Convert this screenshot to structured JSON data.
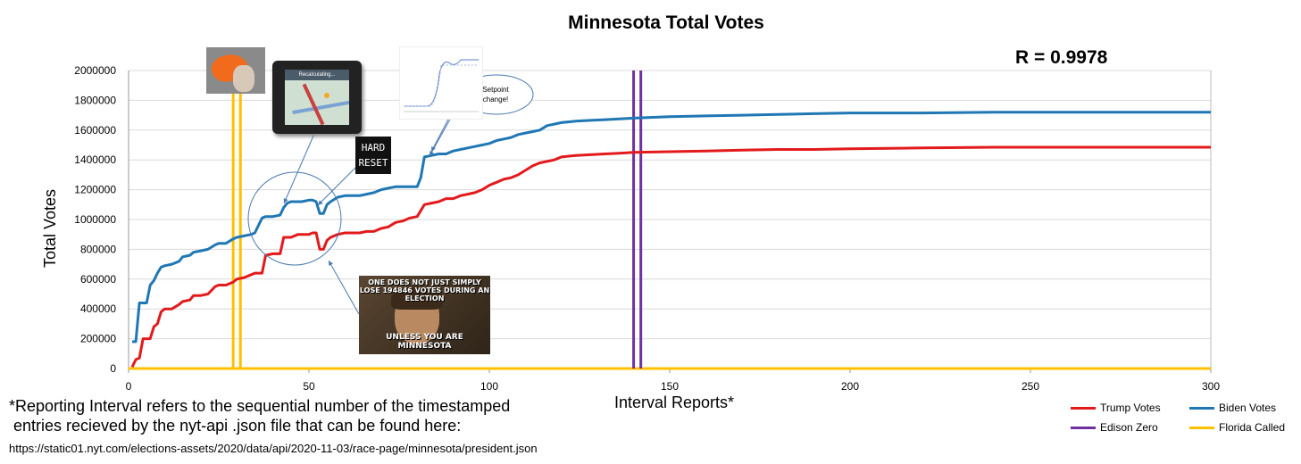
{
  "title": "Minnesota Total Votes",
  "r_value": "R = 0.9978",
  "ylabel": "Total Votes",
  "xlabel": "Interval Reports*",
  "footnote_line1": "*Reporting Interval refers to the sequential number of the timestamped",
  "footnote_line2": " entries recieved by the nyt-api .json file that can be found here:",
  "url": "https://static01.nyt.com/elections-assets/2020/data/api/2020-11-03/race-page/minnesota/president.json",
  "annotations": {
    "setpoint": "Setpoint change!",
    "hard_reset_line1": "HARD",
    "hard_reset_line2": "RESET",
    "gps_text": "Recalculating...",
    "meme_top": "ONE DOES NOT JUST SIMPLY LOSE 194846 VOTES DURING AN ELECTION",
    "meme_bottom": "UNLESS YOU ARE MINNESOTA"
  },
  "colors": {
    "trump": "#e31a1c",
    "biden": "#1f77b4",
    "edison": "#7030a0",
    "florida": "#ffc000",
    "grid": "#d9d9d9"
  },
  "chart_data": {
    "type": "line",
    "xlim": [
      0,
      300
    ],
    "ylim": [
      0,
      2000000
    ],
    "x_ticks": [
      0,
      50,
      100,
      150,
      200,
      250,
      300
    ],
    "y_ticks": [
      0,
      200000,
      400000,
      600000,
      800000,
      1000000,
      1200000,
      1400000,
      1600000,
      1800000,
      2000000
    ],
    "x_tick_labels": [
      "0",
      "50",
      "100",
      "150",
      "200",
      "250",
      "300"
    ],
    "y_tick_labels": [
      "0",
      "200000",
      "400000",
      "600000",
      "800000",
      "1000000",
      "1200000",
      "1400000",
      "1600000",
      "1800000",
      "2000000"
    ],
    "grid": true,
    "legend_position": "bottom-right",
    "series": [
      {
        "name": "Trump Votes",
        "color": "#e31a1c",
        "x": [
          1,
          2,
          3,
          4,
          5,
          6,
          7,
          8,
          9,
          10,
          12,
          14,
          15,
          17,
          18,
          20,
          22,
          24,
          25,
          27,
          29,
          30,
          32,
          34,
          35,
          37,
          38,
          40,
          42,
          43,
          44,
          45,
          47,
          48,
          50,
          51,
          52,
          53,
          54,
          55,
          56,
          58,
          60,
          62,
          64,
          66,
          68,
          70,
          72,
          74,
          76,
          78,
          80,
          82,
          84,
          86,
          88,
          90,
          92,
          94,
          96,
          98,
          100,
          102,
          104,
          106,
          108,
          110,
          112,
          114,
          116,
          118,
          120,
          122,
          124,
          128,
          132,
          136,
          140,
          150,
          160,
          170,
          180,
          190,
          200,
          220,
          240,
          260,
          280,
          300
        ],
        "y": [
          10000,
          60000,
          70000,
          200000,
          200000,
          200000,
          280000,
          300000,
          380000,
          400000,
          400000,
          430000,
          450000,
          460000,
          490000,
          490000,
          500000,
          550000,
          560000,
          560000,
          580000,
          600000,
          610000,
          630000,
          640000,
          640000,
          760000,
          770000,
          770000,
          880000,
          880000,
          880000,
          900000,
          900000,
          900000,
          910000,
          910000,
          800000,
          800000,
          860000,
          880000,
          900000,
          910000,
          910000,
          910000,
          920000,
          920000,
          940000,
          950000,
          980000,
          990000,
          1010000,
          1020000,
          1100000,
          1110000,
          1120000,
          1140000,
          1140000,
          1160000,
          1170000,
          1180000,
          1200000,
          1230000,
          1250000,
          1270000,
          1280000,
          1300000,
          1330000,
          1360000,
          1380000,
          1390000,
          1400000,
          1420000,
          1425000,
          1430000,
          1435000,
          1440000,
          1445000,
          1450000,
          1455000,
          1460000,
          1465000,
          1470000,
          1470000,
          1475000,
          1480000,
          1485000,
          1485000,
          1485000,
          1485000
        ]
      },
      {
        "name": "Biden Votes",
        "color": "#1f77b4",
        "x": [
          1,
          2,
          3,
          4,
          5,
          6,
          7,
          8,
          9,
          10,
          12,
          14,
          15,
          17,
          18,
          20,
          22,
          24,
          25,
          27,
          29,
          30,
          32,
          34,
          35,
          37,
          38,
          40,
          42,
          43,
          44,
          45,
          47,
          48,
          50,
          51,
          52,
          53,
          54,
          55,
          56,
          58,
          60,
          62,
          64,
          66,
          68,
          70,
          72,
          74,
          76,
          78,
          80,
          81,
          82,
          84,
          86,
          88,
          90,
          92,
          94,
          96,
          98,
          100,
          102,
          104,
          106,
          108,
          110,
          112,
          114,
          116,
          118,
          120,
          122,
          124,
          128,
          132,
          136,
          140,
          150,
          160,
          170,
          180,
          190,
          200,
          220,
          240,
          260,
          280,
          300
        ],
        "y": [
          180000,
          180000,
          440000,
          440000,
          440000,
          560000,
          590000,
          640000,
          680000,
          690000,
          700000,
          720000,
          750000,
          760000,
          780000,
          790000,
          800000,
          830000,
          840000,
          840000,
          870000,
          880000,
          890000,
          900000,
          910000,
          1010000,
          1020000,
          1020000,
          1030000,
          1080000,
          1110000,
          1120000,
          1120000,
          1120000,
          1130000,
          1130000,
          1120000,
          1040000,
          1040000,
          1100000,
          1120000,
          1150000,
          1160000,
          1160000,
          1160000,
          1170000,
          1180000,
          1200000,
          1210000,
          1220000,
          1220000,
          1220000,
          1220000,
          1280000,
          1420000,
          1430000,
          1440000,
          1440000,
          1460000,
          1470000,
          1480000,
          1490000,
          1500000,
          1510000,
          1530000,
          1540000,
          1550000,
          1570000,
          1580000,
          1590000,
          1600000,
          1630000,
          1640000,
          1650000,
          1655000,
          1660000,
          1665000,
          1670000,
          1675000,
          1680000,
          1690000,
          1695000,
          1700000,
          1705000,
          1710000,
          1715000,
          1715000,
          1720000,
          1720000,
          1720000,
          1720000
        ]
      },
      {
        "name": "Edison Zero",
        "color": "#7030a0",
        "x": [
          140,
          142
        ],
        "y": [
          2000000,
          2000000
        ]
      },
      {
        "name": "Florida Called",
        "color": "#ffc000",
        "x": [
          29,
          31
        ],
        "y": [
          2000000,
          2000000
        ]
      }
    ]
  }
}
